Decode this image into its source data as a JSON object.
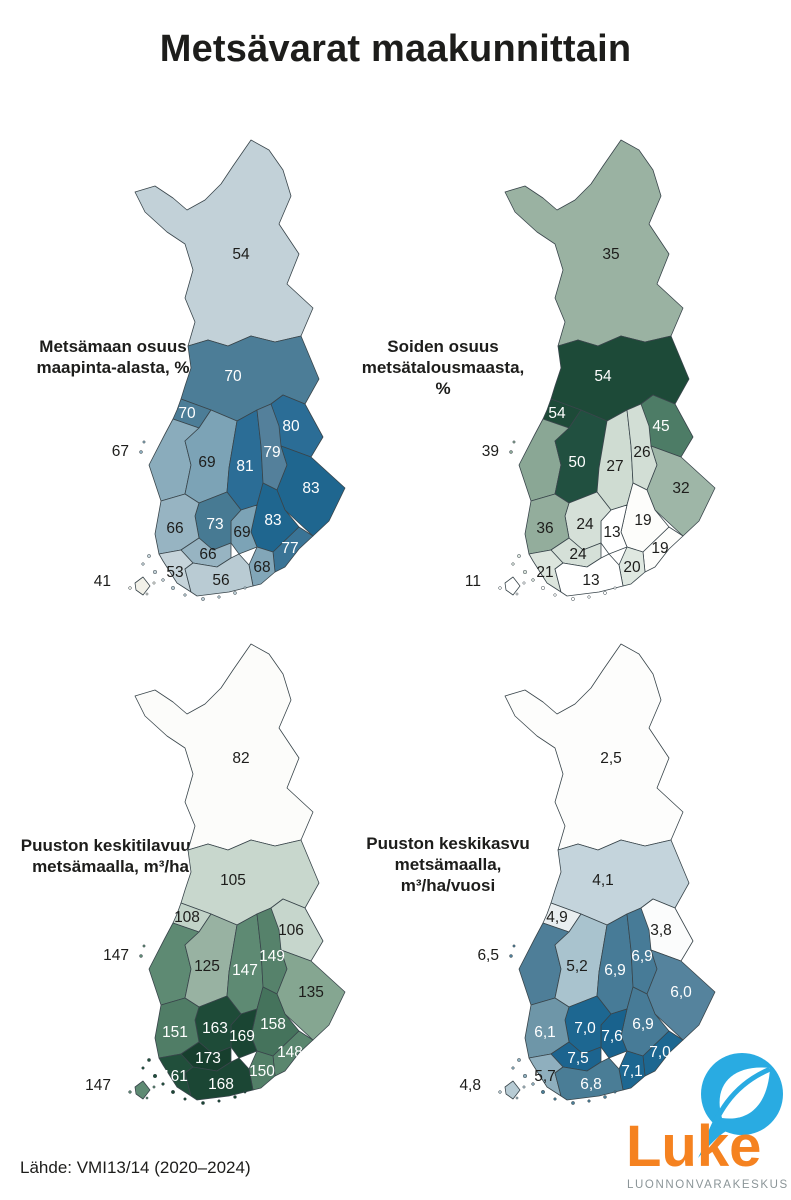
{
  "title": "Metsävarat maakunnittain",
  "source": "Lähde: VMI13/14 (2020–2024)",
  "logo": {
    "brand": "Luke",
    "subtitle": "LUONNONVARAKESKUS",
    "orange": "#f58220",
    "blue": "#29abe2",
    "gray": "#8b9598",
    "leaf_white": "#ffffff"
  },
  "border_color": "#39454b",
  "maps": [
    {
      "heading_lines": [
        "Metsämaan osuus",
        "maapinta-alasta, %"
      ],
      "values": {
        "lappi": "54",
        "pohjois_pohjanmaa": "70",
        "kainuu": "80",
        "keski_pohjanmaa": "70",
        "pohjanmaa": "67",
        "etela_pohjanmaa": "69",
        "keski_suomi": "81",
        "pohjois_savo": "79",
        "pohjois_karjala": "83",
        "satakunta": "66",
        "pirkanmaa": "73",
        "paijat_hame": "69",
        "etela_savo": "83",
        "etela_karjala": "77",
        "kanta_hame": "66",
        "kymenlaakso": "68",
        "varsinais_suomi": "53",
        "uusimaa": "56",
        "ahvenanmaa": "41"
      },
      "fills": {
        "lappi": "#c2d1d8",
        "pohjois_pohjanmaa": "#4c7d97",
        "kainuu": "#2b6d96",
        "keski_pohjanmaa": "#4c7d97",
        "pohjanmaa": "#8aacbc",
        "etela_pohjanmaa": "#7ca3b6",
        "keski_suomi": "#2b6d96",
        "pohjois_savo": "#54809b",
        "pohjois_karjala": "#1f668f",
        "satakunta": "#97b4c2",
        "pirkanmaa": "#477a93",
        "paijat_hame": "#7ca3b6",
        "etela_savo": "#1f668f",
        "etela_karjala": "#3a7496",
        "kanta_hame": "#97b4c2",
        "kymenlaakso": "#82a6b8",
        "varsinais_suomi": "#c6d4da",
        "uusimaa": "#b9cbd3",
        "ahvenanmaa": "#f2f1e9"
      }
    },
    {
      "heading_lines": [
        "Soiden osuus",
        "metsätalousmaasta, %"
      ],
      "values": {
        "lappi": "35",
        "pohjois_pohjanmaa": "54",
        "kainuu": "45",
        "keski_pohjanmaa": "54",
        "pohjanmaa": "39",
        "etela_pohjanmaa": "50",
        "keski_suomi": "27",
        "pohjois_savo": "26",
        "pohjois_karjala": "32",
        "satakunta": "36",
        "pirkanmaa": "24",
        "paijat_hame": "13",
        "etela_savo": "19",
        "etela_karjala": "19",
        "kanta_hame": "24",
        "kymenlaakso": "20",
        "varsinais_suomi": "21",
        "uusimaa": "13",
        "ahvenanmaa": "11"
      },
      "fills": {
        "lappi": "#9ab2a2",
        "pohjois_pohjanmaa": "#1d4a38",
        "kainuu": "#4d7c66",
        "keski_pohjanmaa": "#1d4a38",
        "pohjanmaa": "#8aa795",
        "etela_pohjanmaa": "#215040",
        "keski_suomi": "#cfdcd2",
        "pohjois_savo": "#d2ded5",
        "pohjois_karjala": "#9eb6a7",
        "satakunta": "#93ad9c",
        "pirkanmaa": "#d5e0d8",
        "paijat_hame": "#ffffff",
        "etela_savo": "#fdfdfb",
        "etela_karjala": "#fdfdfb",
        "kanta_hame": "#d5e0d8",
        "kymenlaakso": "#dfe8e1",
        "varsinais_suomi": "#dce5dd",
        "uusimaa": "#ffffff",
        "ahvenanmaa": "#ffffff"
      }
    },
    {
      "heading_lines": [
        "Puuston keskitilavuus",
        "metsämaalla, m³/ha"
      ],
      "values": {
        "lappi": "82",
        "pohjois_pohjanmaa": "105",
        "kainuu": "106",
        "keski_pohjanmaa": "108",
        "pohjanmaa": "147",
        "etela_pohjanmaa": "125",
        "keski_suomi": "147",
        "pohjois_savo": "149",
        "pohjois_karjala": "135",
        "satakunta": "151",
        "pirkanmaa": "163",
        "paijat_hame": "169",
        "etela_savo": "158",
        "etela_karjala": "148",
        "kanta_hame": "173",
        "kymenlaakso": "150",
        "varsinais_suomi": "161",
        "uusimaa": "168",
        "ahvenanmaa": "147"
      },
      "fills": {
        "lappi": "#fcfcfa",
        "pohjois_pohjanmaa": "#c8d7cd",
        "kainuu": "#c6d6cc",
        "keski_pohjanmaa": "#c2d3c8",
        "pohjanmaa": "#5e8a73",
        "etela_pohjanmaa": "#98b2a2",
        "keski_suomi": "#5e8a73",
        "pohjois_savo": "#56826b",
        "pohjois_karjala": "#85a691",
        "satakunta": "#507d66",
        "pirkanmaa": "#1e4b38",
        "paijat_hame": "#1a4533",
        "etela_savo": "#45735c",
        "etela_karjala": "#5a866e",
        "kanta_hame": "#173f2e",
        "kymenlaakso": "#527f67",
        "varsinais_suomi": "#214f3b",
        "uusimaa": "#1b4634",
        "ahvenanmaa": "#5e8a73"
      }
    },
    {
      "heading_lines": [
        "Puuston keskikasvu",
        "metsämaalla,",
        "m³/ha/vuosi"
      ],
      "values": {
        "lappi": "2,5",
        "pohjois_pohjanmaa": "4,1",
        "kainuu": "3,8",
        "keski_pohjanmaa": "4,9",
        "pohjanmaa": "6,5",
        "etela_pohjanmaa": "5,2",
        "keski_suomi": "6,9",
        "pohjois_savo": "6,9",
        "pohjois_karjala": "6,0",
        "satakunta": "6,1",
        "pirkanmaa": "7,0",
        "paijat_hame": "7,6",
        "etela_savo": "6,9",
        "etela_karjala": "7,0",
        "kanta_hame": "7,5",
        "kymenlaakso": "7,1",
        "varsinais_suomi": "5,7",
        "uusimaa": "6,8",
        "ahvenanmaa": "4,8"
      },
      "fills": {
        "lappi": "#fdfdfc",
        "pohjois_pohjanmaa": "#c4d4dc",
        "kainuu": "#fbfcfc",
        "keski_pohjanmaa": "#e9eef0",
        "pohjanmaa": "#4e7e98",
        "etela_pohjanmaa": "#a9c3ce",
        "keski_suomi": "#477b97",
        "pohjois_savo": "#477b97",
        "pohjois_karjala": "#55839d",
        "satakunta": "#6e96a8",
        "pirkanmaa": "#1d6791",
        "paijat_hame": "#19628d",
        "etela_savo": "#477b97",
        "etela_karjala": "#1d6791",
        "kanta_hame": "#1c648f",
        "kymenlaakso": "#1d6791",
        "varsinais_suomi": "#8fafbe",
        "uusimaa": "#4a7d96",
        "ahvenanmaa": "#b7cbd4"
      }
    }
  ],
  "chart_data": [
    {
      "type": "choropleth-map",
      "title": "Metsämaan osuus maapinta-alasta, %",
      "unit": "%",
      "legend_position": "none",
      "regions": {
        "lappi": 54,
        "pohjois_pohjanmaa": 70,
        "kainuu": 80,
        "keski_pohjanmaa": 70,
        "pohjanmaa": 67,
        "etela_pohjanmaa": 69,
        "keski_suomi": 81,
        "pohjois_savo": 79,
        "pohjois_karjala": 83,
        "satakunta": 66,
        "pirkanmaa": 73,
        "paijat_hame": 69,
        "etela_savo": 83,
        "etela_karjala": 77,
        "kanta_hame": 66,
        "kymenlaakso": 68,
        "varsinais_suomi": 53,
        "uusimaa": 56,
        "ahvenanmaa": 41
      }
    },
    {
      "type": "choropleth-map",
      "title": "Soiden osuus metsätalousmaasta, %",
      "unit": "%",
      "legend_position": "none",
      "regions": {
        "lappi": 35,
        "pohjois_pohjanmaa": 54,
        "kainuu": 45,
        "keski_pohjanmaa": 54,
        "pohjanmaa": 39,
        "etela_pohjanmaa": 50,
        "keski_suomi": 27,
        "pohjois_savo": 26,
        "pohjois_karjala": 32,
        "satakunta": 36,
        "pirkanmaa": 24,
        "paijat_hame": 13,
        "etela_savo": 19,
        "etela_karjala": 19,
        "kanta_hame": 24,
        "kymenlaakso": 20,
        "varsinais_suomi": 21,
        "uusimaa": 13,
        "ahvenanmaa": 11
      }
    },
    {
      "type": "choropleth-map",
      "title": "Puuston keskitilavuus metsämaalla, m³/ha",
      "unit": "m³/ha",
      "legend_position": "none",
      "regions": {
        "lappi": 82,
        "pohjois_pohjanmaa": 105,
        "kainuu": 106,
        "keski_pohjanmaa": 108,
        "pohjanmaa": 147,
        "etela_pohjanmaa": 125,
        "keski_suomi": 147,
        "pohjois_savo": 149,
        "pohjois_karjala": 135,
        "satakunta": 151,
        "pirkanmaa": 163,
        "paijat_hame": 169,
        "etela_savo": 158,
        "etela_karjala": 148,
        "kanta_hame": 173,
        "kymenlaakso": 150,
        "varsinais_suomi": 161,
        "uusimaa": 168,
        "ahvenanmaa": 147
      }
    },
    {
      "type": "choropleth-map",
      "title": "Puuston keskikasvu metsämaalla, m³/ha/vuosi",
      "unit": "m³/ha/vuosi",
      "legend_position": "none",
      "regions": {
        "lappi": 2.5,
        "pohjois_pohjanmaa": 4.1,
        "kainuu": 3.8,
        "keski_pohjanmaa": 4.9,
        "pohjanmaa": 6.5,
        "etela_pohjanmaa": 5.2,
        "keski_suomi": 6.9,
        "pohjois_savo": 6.9,
        "pohjois_karjala": 6.0,
        "satakunta": 6.1,
        "pirkanmaa": 7.0,
        "paijat_hame": 7.6,
        "etela_savo": 6.9,
        "etela_karjala": 7.0,
        "kanta_hame": 7.5,
        "kymenlaakso": 7.1,
        "varsinais_suomi": 5.7,
        "uusimaa": 6.8,
        "ahvenanmaa": 4.8
      }
    }
  ]
}
